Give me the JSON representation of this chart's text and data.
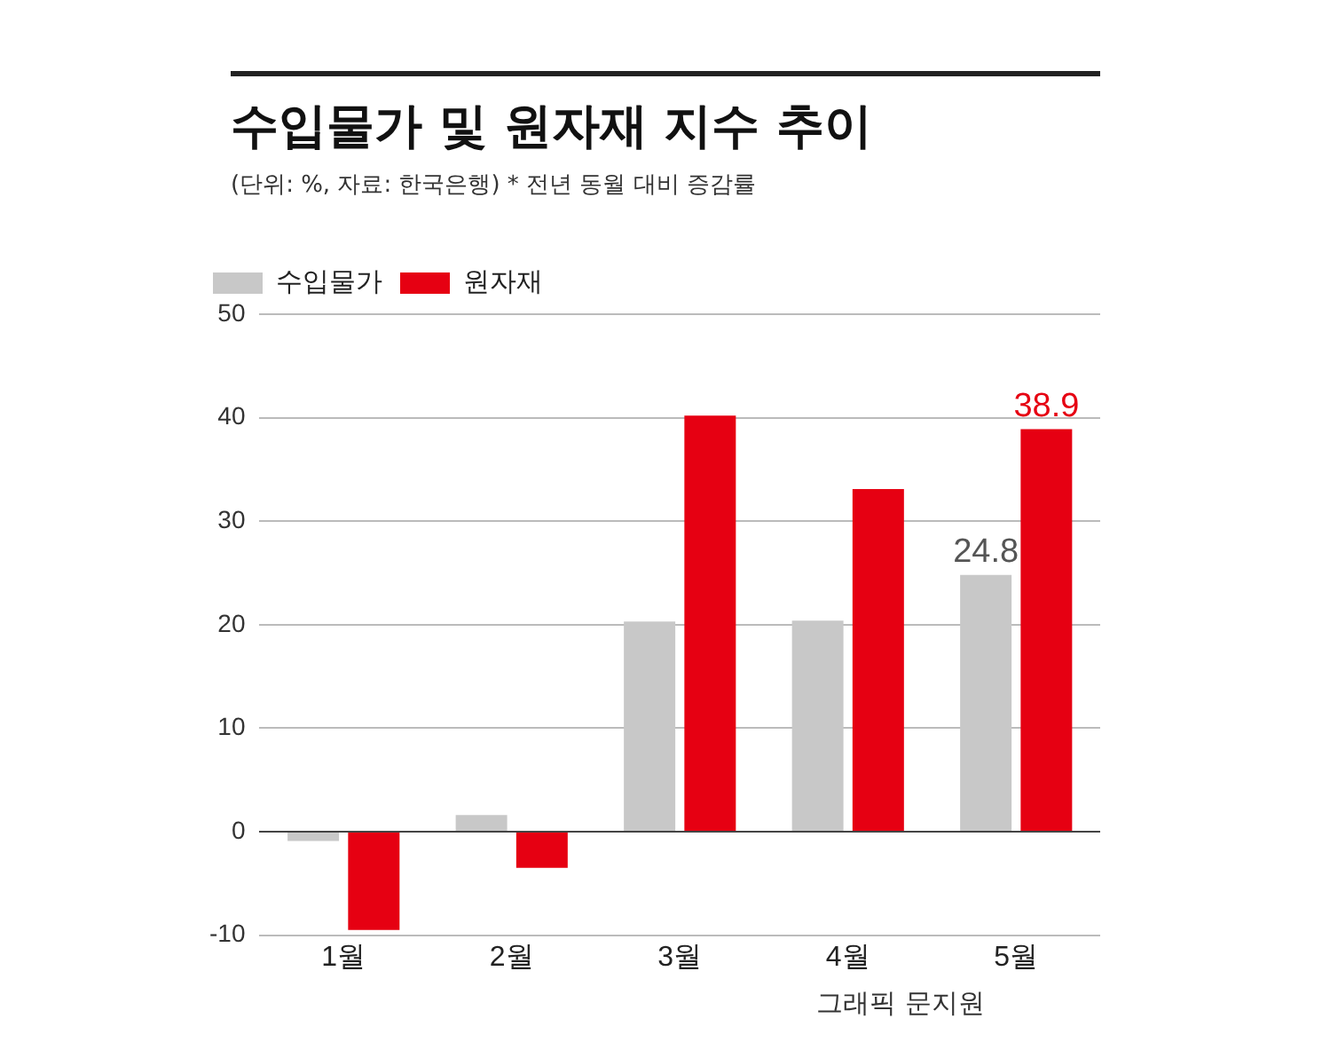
{
  "chart_data": {
    "type": "bar",
    "title": "수입물가 및 원자재 지수 추이",
    "subtitle": "(단위: %, 자료: 한국은행)  * 전년 동월 대비 증감률",
    "categories": [
      "1월",
      "2월",
      "3월",
      "4월",
      "5월"
    ],
    "series": [
      {
        "name": "수입물가",
        "color": "#c8c8c8",
        "values": [
          -0.9,
          1.6,
          20.3,
          20.4,
          24.8
        ],
        "value_labels": [
          null,
          null,
          null,
          null,
          "24.8"
        ]
      },
      {
        "name": "원자재",
        "color": "#e60012",
        "values": [
          -9.5,
          -3.5,
          40.2,
          33.1,
          38.9
        ],
        "value_labels": [
          null,
          null,
          null,
          null,
          "38.9"
        ]
      }
    ],
    "ylim": [
      -10,
      50
    ],
    "yticks": [
      -10,
      0,
      10,
      20,
      30,
      40,
      50
    ],
    "grid": "y",
    "legend": "top left",
    "annotations": [
      "그래픽 문지원"
    ]
  }
}
